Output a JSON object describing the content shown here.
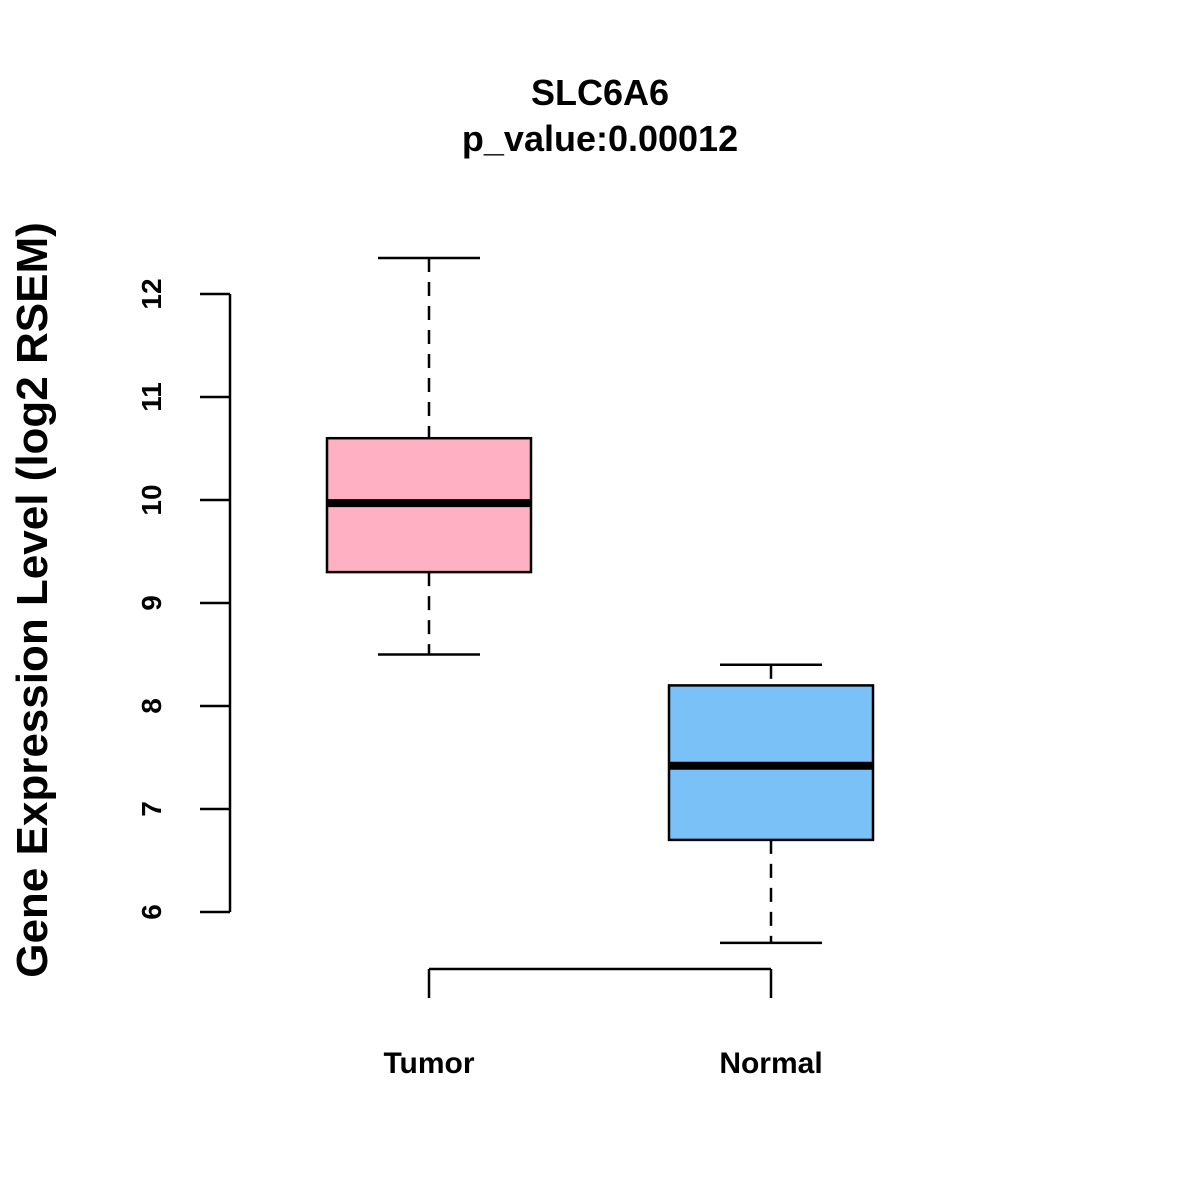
{
  "chart_data": {
    "type": "boxplot",
    "title": "SLC6A6",
    "subtitle": "p_value:0.00012",
    "ylabel": "Gene Expression Level (log2 RSEM)",
    "xlabel": "",
    "ylim": [
      6,
      12
    ],
    "yticks": [
      6,
      7,
      8,
      9,
      10,
      11,
      12
    ],
    "categories": [
      "Tumor",
      "Normal"
    ],
    "series": [
      {
        "name": "Tumor",
        "min": 8.5,
        "q1": 9.3,
        "median": 9.97,
        "q3": 10.6,
        "max": 12.35,
        "color": "#FFB0C2"
      },
      {
        "name": "Normal",
        "min": 5.7,
        "q1": 6.7,
        "median": 7.42,
        "q3": 8.2,
        "max": 8.4,
        "color": "#7AC1F7"
      }
    ],
    "grid": false,
    "legend": "none"
  }
}
